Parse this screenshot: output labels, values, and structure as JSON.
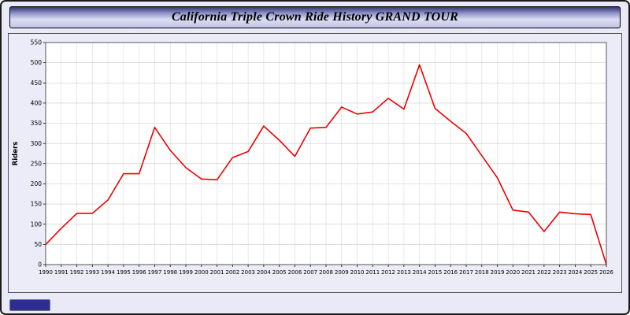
{
  "title": "California Triple Crown Ride History GRAND TOUR",
  "chart_data": {
    "type": "line",
    "title": "California Triple Crown Ride History GRAND TOUR",
    "xlabel": "",
    "ylabel": "Riders",
    "ylim": [
      0,
      550
    ],
    "ytick_step": 50,
    "grid": true,
    "legend": "none",
    "plot_bg": "#ffffff",
    "page_bg": "#e9e9f7",
    "line_color": "#ee0000",
    "x": [
      1990,
      1991,
      1992,
      1993,
      1994,
      1995,
      1996,
      1997,
      1998,
      1999,
      2000,
      2001,
      2002,
      2003,
      2004,
      2005,
      2006,
      2007,
      2008,
      2009,
      2010,
      2011,
      2012,
      2013,
      2014,
      2015,
      2016,
      2017,
      2018,
      2019,
      2020,
      2021,
      2022,
      2023,
      2024,
      2025,
      2026
    ],
    "series": [
      {
        "name": "Riders",
        "values": [
          50,
          90,
          127,
          127,
          160,
          225,
          225,
          340,
          283,
          240,
          212,
          210,
          265,
          280,
          343,
          308,
          268,
          338,
          340,
          390,
          373,
          378,
          412,
          385,
          495,
          387,
          355,
          325,
          270,
          215,
          135,
          130,
          82,
          130,
          126,
          124,
          0
        ]
      }
    ]
  },
  "footer": {
    "button_color": "#2d2f8f"
  }
}
